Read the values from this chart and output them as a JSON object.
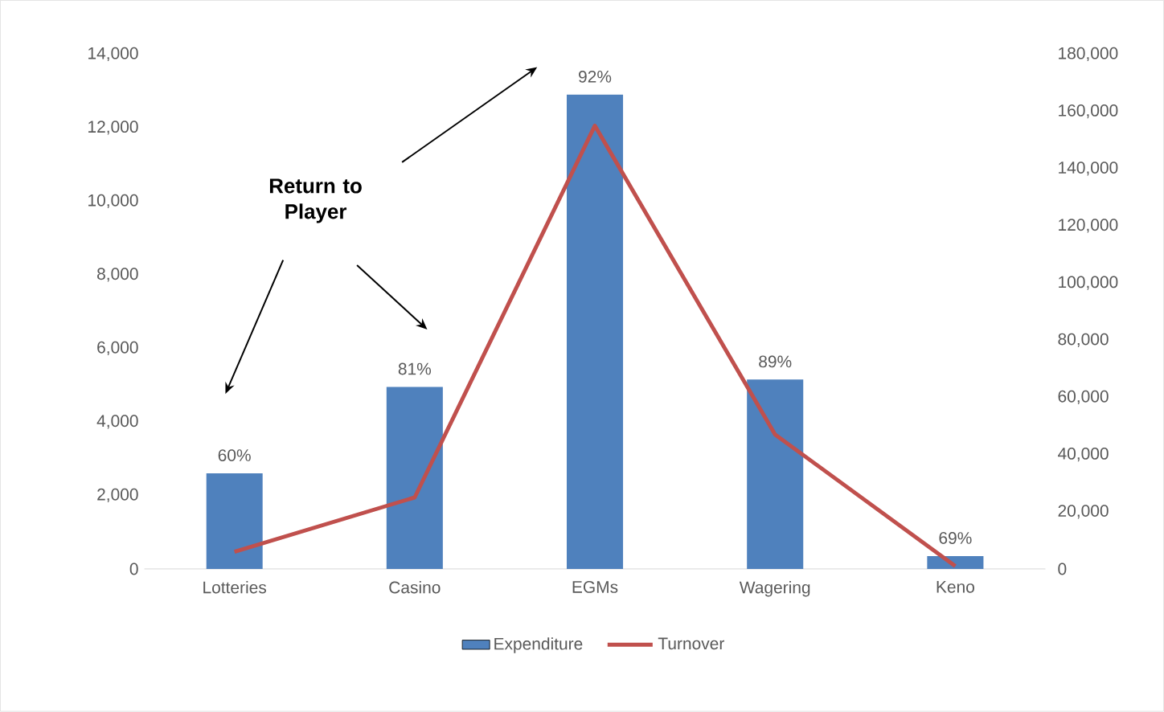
{
  "chart_data": {
    "type": "bar",
    "categories": [
      "Lotteries",
      "Casino",
      "EGMs",
      "Wagering",
      "Keno"
    ],
    "series": [
      {
        "name": "Expenditure",
        "color": "#4f81bd",
        "values": [
          2600,
          4950,
          12900,
          5150,
          350
        ]
      },
      {
        "name": "Turnover",
        "type": "line",
        "axis": "y2",
        "color": "#c0504d",
        "values": [
          6000,
          25000,
          155000,
          47000,
          1000
        ]
      }
    ],
    "ylim": [
      0,
      14000
    ],
    "yticks": [
      0,
      {
        "value": 2000,
        "label": "2,000"
      },
      {
        "value": 4000,
        "label": "4,000"
      },
      {
        "value": 6000,
        "label": "6,000"
      },
      {
        "value": 8000,
        "label": "8,000"
      },
      {
        "value": 10000,
        "label": "10,000"
      },
      {
        "value": 12000,
        "label": "12,000"
      },
      {
        "value": 14000,
        "label": "14,000"
      }
    ],
    "y2lim": [
      0,
      180000
    ],
    "y2ticks": [
      0,
      {
        "value": 20000,
        "label": "20,000"
      },
      {
        "value": 40000,
        "label": "40,000"
      },
      {
        "value": 60000,
        "label": "60,000"
      },
      {
        "value": 80000,
        "label": "80,000"
      },
      {
        "value": 100000,
        "label": "100,000"
      },
      {
        "value": 120000,
        "label": "120,000"
      },
      {
        "value": 140000,
        "label": "140,000"
      },
      {
        "value": 160000,
        "label": "160,000"
      },
      {
        "value": 180000,
        "label": "180,000"
      }
    ],
    "annotations": [
      "Return to Player",
      {
        "text": "60%",
        "x": "Lotteries",
        "y": 2600
      },
      {
        "text": "81%",
        "x": "Casino",
        "y": 4950
      },
      {
        "text": "92%",
        "x": "EGMs",
        "y": 12900
      },
      {
        "text": "89%",
        "x": "Wagering",
        "y": 5150
      },
      {
        "text": "69%",
        "x": "Keno",
        "y": 350
      }
    ],
    "legend": "bottom",
    "grid": false,
    "marker": "none"
  }
}
